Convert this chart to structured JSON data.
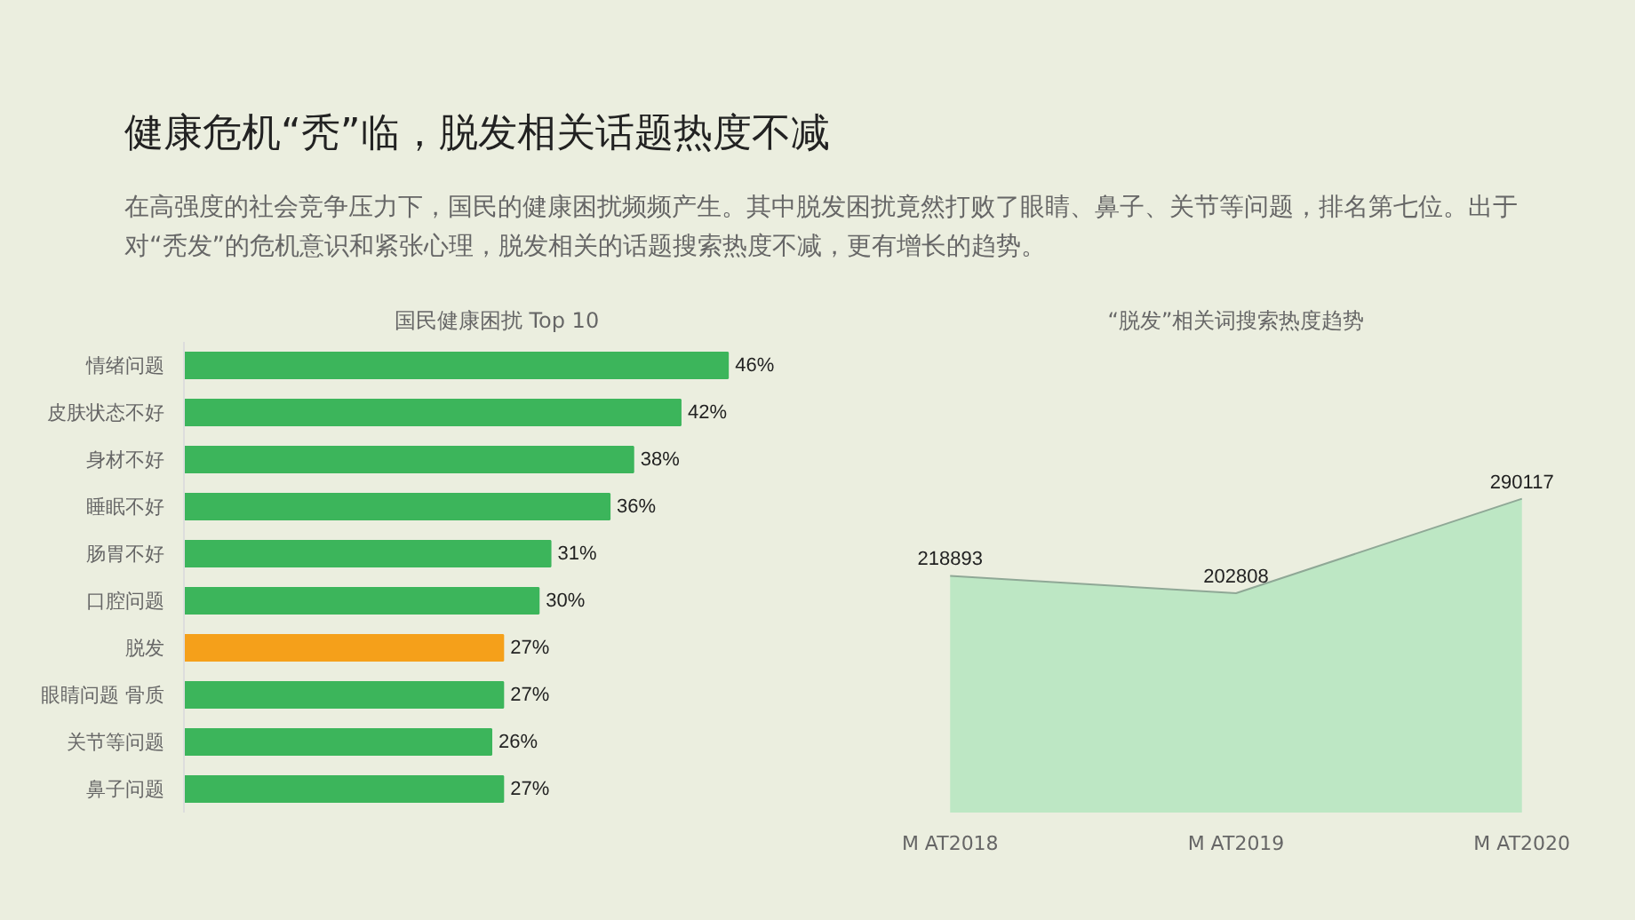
{
  "chart_data": [
    {
      "type": "other",
      "title": "健康危机“秃”临，脱发相关话题热度不减",
      "subtitle": "在高强度的社会竞争压力下，国民的健康困扰频频产生。其中脱发困扰竟然打败了眼睛、鼻子、关节等问题，排名第七位。出于对“秃发”的危机意识和紧张心理，脱发相关的话题搜索热度不减，更有增长的趋势。"
    },
    {
      "type": "bar",
      "orientation": "horizontal",
      "title": "国民健康困扰 Top 10",
      "categories": [
        "情绪问题",
        "皮肤状态不好",
        "身材不好",
        "睡眠不好",
        "肠胃不好",
        "口腔问题",
        "脱发",
        "眼睛问题 骨质",
        "关节等问题",
        "鼻子问题"
      ],
      "values": [
        46,
        42,
        38,
        36,
        31,
        30,
        27,
        27,
        26,
        27
      ],
      "value_labels": [
        "46%",
        "42%",
        "38%",
        "36%",
        "31%",
        "30%",
        "27%",
        "27%",
        "26%",
        "27%"
      ],
      "colors": [
        "#3cb55b",
        "#3cb55b",
        "#3cb55b",
        "#3cb55b",
        "#3cb55b",
        "#3cb55b",
        "#f5a01a",
        "#3cb55b",
        "#3cb55b",
        "#3cb55b"
      ]
    },
    {
      "type": "area",
      "title": "“脱发”相关词搜索热度趋势",
      "categories": [
        "M AT2018",
        "M AT2019",
        "M AT2020"
      ],
      "series": [
        {
          "color": "#b8e6c1",
          "values": [
            218893,
            202808,
            290117
          ]
        }
      ],
      "data_labels": true
    }
  ]
}
